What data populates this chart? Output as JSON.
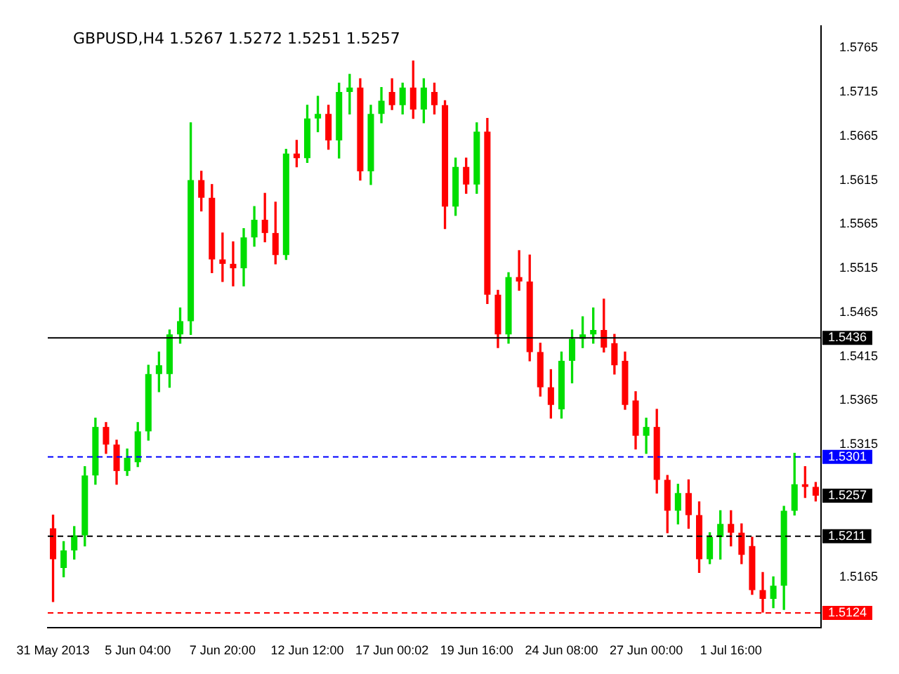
{
  "chart_data": {
    "type": "candlestick",
    "title": "GBPUSD,H4 1.5267 1.5272 1.5251 1.5257",
    "categories": [
      "31 May 2013",
      null,
      null,
      null,
      null,
      null,
      null,
      null,
      "5 Jun 04:00",
      null,
      null,
      null,
      null,
      null,
      null,
      null,
      "7 Jun 20:00",
      null,
      null,
      null,
      null,
      null,
      null,
      null,
      "12 Jun 12:00",
      null,
      null,
      null,
      null,
      null,
      null,
      null,
      "17 Jun 00:02",
      null,
      null,
      null,
      null,
      null,
      null,
      null,
      "19 Jun 16:00",
      null,
      null,
      null,
      null,
      null,
      null,
      null,
      "24 Jun 08:00",
      null,
      null,
      null,
      null,
      null,
      null,
      null,
      "27 Jun 00:00",
      null,
      null,
      null,
      null,
      null,
      null,
      null,
      "1 Jul 16:00",
      null,
      null,
      null,
      null,
      null,
      null,
      null,
      null
    ],
    "ohlc": [
      [
        1.522,
        1.5235,
        1.5137,
        1.5185
      ],
      [
        1.5175,
        1.5205,
        1.5165,
        1.5195
      ],
      [
        1.5195,
        1.5222,
        1.5185,
        1.5212
      ],
      [
        1.5212,
        1.529,
        1.52,
        1.528
      ],
      [
        1.528,
        1.5345,
        1.527,
        1.5335
      ],
      [
        1.5335,
        1.534,
        1.5305,
        1.5315
      ],
      [
        1.5315,
        1.532,
        1.527,
        1.5285
      ],
      [
        1.5285,
        1.531,
        1.528,
        1.53
      ],
      [
        1.5295,
        1.534,
        1.529,
        1.533
      ],
      [
        1.533,
        1.5405,
        1.532,
        1.5395
      ],
      [
        1.5395,
        1.542,
        1.5375,
        1.5405
      ],
      [
        1.5395,
        1.5445,
        1.538,
        1.544
      ],
      [
        1.544,
        1.547,
        1.543,
        1.5455
      ],
      [
        1.5455,
        1.568,
        1.544,
        1.5615
      ],
      [
        1.5615,
        1.5625,
        1.558,
        1.5595
      ],
      [
        1.5595,
        1.561,
        1.551,
        1.5525
      ],
      [
        1.5525,
        1.5555,
        1.55,
        1.552
      ],
      [
        1.552,
        1.5545,
        1.5495,
        1.5515
      ],
      [
        1.5515,
        1.556,
        1.5495,
        1.555
      ],
      [
        1.555,
        1.5585,
        1.554,
        1.557
      ],
      [
        1.557,
        1.56,
        1.5545,
        1.5555
      ],
      [
        1.5555,
        1.559,
        1.552,
        1.553
      ],
      [
        1.553,
        1.565,
        1.5525,
        1.5645
      ],
      [
        1.5645,
        1.566,
        1.563,
        1.564
      ],
      [
        1.564,
        1.57,
        1.5635,
        1.5685
      ],
      [
        1.5685,
        1.571,
        1.567,
        1.569
      ],
      [
        1.569,
        1.57,
        1.565,
        1.566
      ],
      [
        1.566,
        1.5725,
        1.564,
        1.5715
      ],
      [
        1.5715,
        1.5735,
        1.569,
        1.572
      ],
      [
        1.572,
        1.573,
        1.5615,
        1.5625
      ],
      [
        1.5625,
        1.57,
        1.561,
        1.569
      ],
      [
        1.569,
        1.572,
        1.568,
        1.5705
      ],
      [
        1.5715,
        1.573,
        1.5695,
        1.57
      ],
      [
        1.57,
        1.5725,
        1.569,
        1.572
      ],
      [
        1.572,
        1.575,
        1.5685,
        1.5695
      ],
      [
        1.5695,
        1.573,
        1.568,
        1.572
      ],
      [
        1.5715,
        1.5725,
        1.569,
        1.57
      ],
      [
        1.57,
        1.5705,
        1.556,
        1.5585
      ],
      [
        1.5585,
        1.564,
        1.5575,
        1.563
      ],
      [
        1.563,
        1.564,
        1.56,
        1.561
      ],
      [
        1.561,
        1.568,
        1.56,
        1.567
      ],
      [
        1.567,
        1.5685,
        1.5475,
        1.5485
      ],
      [
        1.5485,
        1.549,
        1.5425,
        1.544
      ],
      [
        1.544,
        1.551,
        1.543,
        1.5505
      ],
      [
        1.5505,
        1.5535,
        1.549,
        1.55
      ],
      [
        1.55,
        1.553,
        1.541,
        1.542
      ],
      [
        1.542,
        1.543,
        1.537,
        1.538
      ],
      [
        1.538,
        1.54,
        1.5345,
        1.536
      ],
      [
        1.5355,
        1.542,
        1.5345,
        1.541
      ],
      [
        1.541,
        1.5445,
        1.5385,
        1.5435
      ],
      [
        1.5435,
        1.546,
        1.5425,
        1.544
      ],
      [
        1.544,
        1.547,
        1.543,
        1.5445
      ],
      [
        1.5445,
        1.548,
        1.542,
        1.5425
      ],
      [
        1.543,
        1.544,
        1.5395,
        1.5405
      ],
      [
        1.541,
        1.542,
        1.5355,
        1.536
      ],
      [
        1.5365,
        1.5375,
        1.531,
        1.5325
      ],
      [
        1.5325,
        1.5345,
        1.5305,
        1.5335
      ],
      [
        1.5335,
        1.5355,
        1.526,
        1.5275
      ],
      [
        1.5275,
        1.528,
        1.5215,
        1.524
      ],
      [
        1.524,
        1.527,
        1.5225,
        1.526
      ],
      [
        1.526,
        1.5275,
        1.522,
        1.5235
      ],
      [
        1.5235,
        1.525,
        1.517,
        1.5185
      ],
      [
        1.5185,
        1.5215,
        1.518,
        1.521
      ],
      [
        1.521,
        1.524,
        1.5185,
        1.5225
      ],
      [
        1.5225,
        1.524,
        1.52,
        1.5215
      ],
      [
        1.5215,
        1.5225,
        1.518,
        1.519
      ],
      [
        1.52,
        1.521,
        1.5145,
        1.515
      ],
      [
        1.515,
        1.517,
        1.5125,
        1.514
      ],
      [
        1.514,
        1.5165,
        1.513,
        1.5155
      ],
      [
        1.5155,
        1.5245,
        1.5128,
        1.524
      ],
      [
        1.524,
        1.5305,
        1.5235,
        1.527
      ],
      [
        1.527,
        1.529,
        1.5255,
        1.5267
      ],
      [
        1.5267,
        1.5272,
        1.5251,
        1.5257
      ]
    ],
    "ylim": [
      1.5107,
      1.579
    ],
    "yticks": [
      1.5765,
      1.5715,
      1.5665,
      1.5615,
      1.5565,
      1.5515,
      1.5465,
      1.5415,
      1.5365,
      1.5315,
      1.5165
    ],
    "ref_lines": [
      {
        "axis": "y",
        "value": 1.5436,
        "label": "1.5436",
        "color": "#000000",
        "line_style": "solid"
      },
      {
        "axis": "y",
        "value": 1.5301,
        "label": "1.5301",
        "color": "#0000ff",
        "line_style": "dashed"
      },
      {
        "axis": "y",
        "value": 1.5211,
        "label": "1.5211",
        "color": "#000000",
        "line_style": "dashed"
      },
      {
        "axis": "y",
        "value": 1.5124,
        "label": "1.5124",
        "color": "#ff0000",
        "line_style": "dashed"
      }
    ],
    "annotations": [
      "1.5257"
    ],
    "grid": false
  }
}
